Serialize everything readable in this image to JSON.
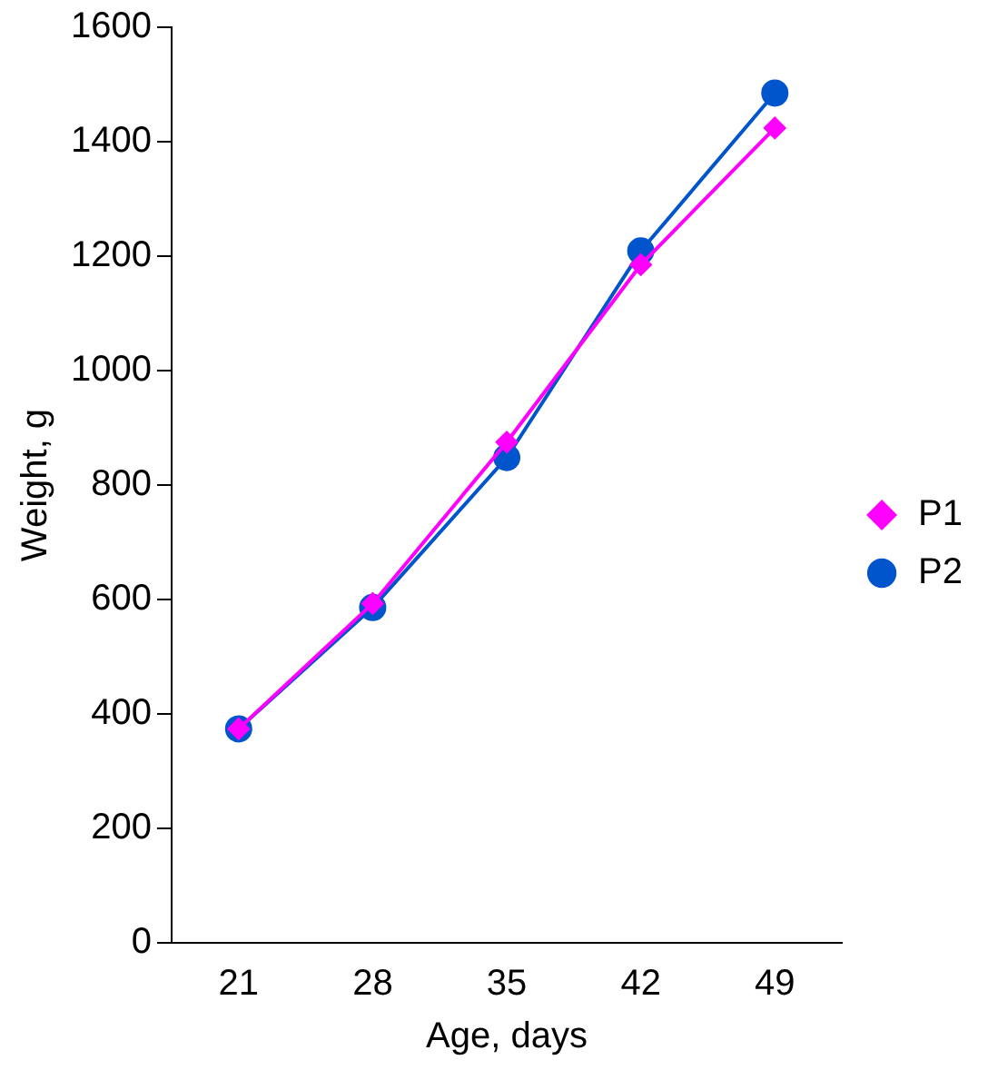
{
  "chart_data": {
    "type": "line",
    "xlabel": "Age, days",
    "ylabel": "Weight, g",
    "categories": [
      "21",
      "28",
      "35",
      "42",
      "49"
    ],
    "series": [
      {
        "name": "P1",
        "color": "#ff00ff",
        "marker": "diamond",
        "values": [
          374,
          593,
          875,
          1185,
          1424
        ]
      },
      {
        "name": "P2",
        "color": "#0055cc",
        "marker": "circle",
        "values": [
          374,
          586,
          848,
          1209,
          1485
        ]
      }
    ],
    "ylim": [
      0,
      1600
    ],
    "yticks": [
      0,
      200,
      400,
      600,
      800,
      1000,
      1200,
      1400,
      1600
    ],
    "grid": false,
    "legend": "right",
    "line_style": "solid"
  }
}
